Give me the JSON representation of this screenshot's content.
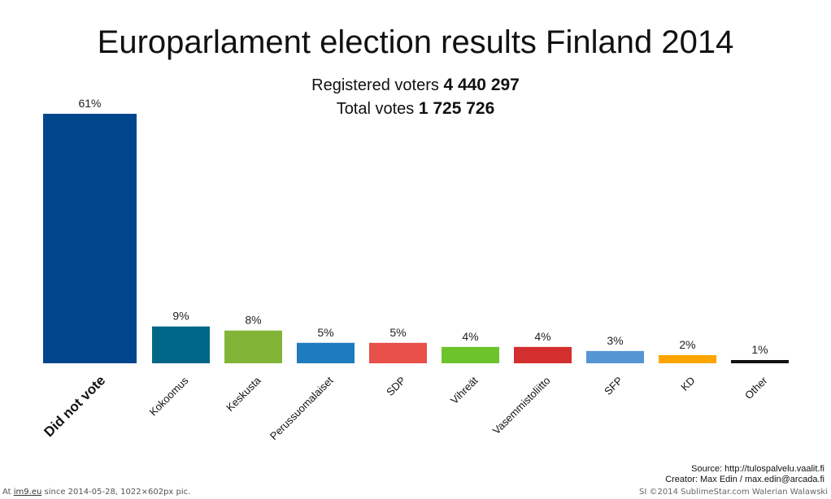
{
  "chart_data": {
    "type": "bar",
    "title": "Europarlament election results Finland 2014",
    "subtitle_lines": [
      {
        "label": "Registered voters",
        "value": "4 440 297"
      },
      {
        "label": "Total votes",
        "value": "1 725 726"
      }
    ],
    "categories": [
      "Did not vote",
      "Kokoomus",
      "Keskusta",
      "Perussuomalaiset",
      "SDP",
      "Vihreät",
      "Vasemmistoliitto",
      "SFP",
      "KD",
      "Other"
    ],
    "values": [
      61,
      9,
      8,
      5,
      5,
      4,
      4,
      3,
      2,
      1
    ],
    "value_labels": [
      "61%",
      "9%",
      "8%",
      "5%",
      "5%",
      "4%",
      "4%",
      "3%",
      "2%",
      "1%"
    ],
    "colors": [
      "#00468c",
      "#006687",
      "#82b537",
      "#1e7bbd",
      "#e8504a",
      "#6cc42a",
      "#d32f2f",
      "#5595d4",
      "#ffa500",
      "#111111"
    ],
    "xlabel": "",
    "ylabel": "",
    "ylim": [
      0,
      61
    ],
    "grid": false,
    "legend": "none"
  },
  "source": {
    "source_line": "Source:  http://tulospalvelu.vaalit.fi",
    "creator_line": "Creator: Max Edin / max.edin@arcada.fi"
  },
  "footer": {
    "prefix": "At",
    "site": "im9.eu",
    "since": "since 2014-05-28, 1022×602px pic.",
    "right": "SI ©2014 SublimeStar.com Walerian Walawski"
  }
}
